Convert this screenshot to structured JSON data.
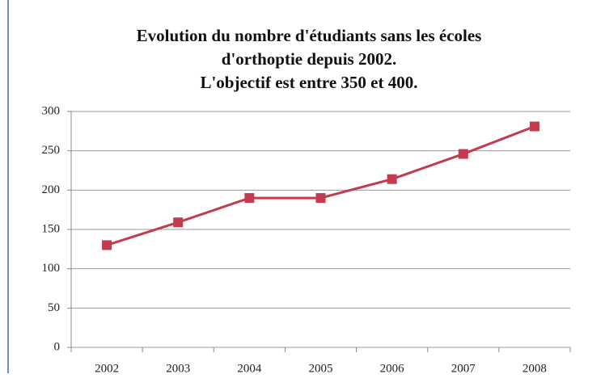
{
  "chart_data": {
    "type": "line",
    "title": [
      "Evolution du nombre d'étudiants sans les écoles",
      "d'orthoptie depuis 2002.",
      "L'objectif est entre 350 et 400."
    ],
    "categories": [
      "2002",
      "2003",
      "2004",
      "2005",
      "2006",
      "2007",
      "2008"
    ],
    "series": [
      {
        "color": "#c33b4c",
        "values": [
          130,
          159,
          190,
          190,
          214,
          246,
          281
        ]
      }
    ],
    "ylim": [
      0,
      300
    ],
    "yticks": [
      0,
      50,
      100,
      150,
      200,
      250,
      300
    ],
    "grid": true
  }
}
